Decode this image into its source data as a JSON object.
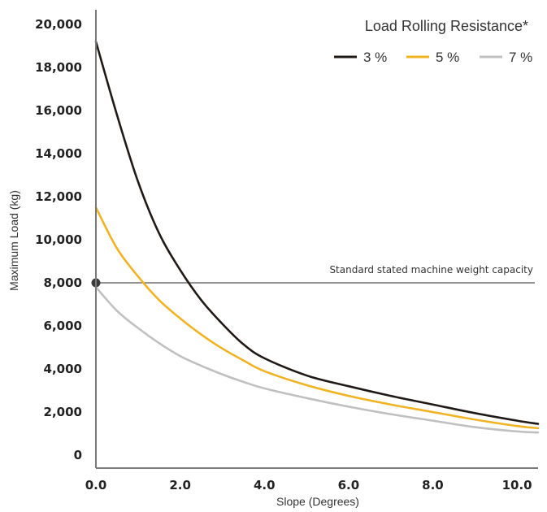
{
  "chart_data": {
    "type": "line",
    "xlabel": "Slope (Degrees)",
    "ylabel": "Maximum Load (kg)",
    "xlim": [
      0,
      10.5
    ],
    "ylim": [
      0,
      20000
    ],
    "xticks": [
      0,
      2,
      4,
      6,
      8,
      10
    ],
    "xtick_labels": [
      "0.0",
      "2.0",
      "4.0",
      "6.0",
      "8.0",
      "10.0"
    ],
    "yticks": [
      0,
      2000,
      4000,
      6000,
      8000,
      10000,
      12000,
      14000,
      16000,
      18000,
      20000
    ],
    "ytick_labels": [
      "0",
      "2,000",
      "4,000",
      "6,000",
      "8,000",
      "10,000",
      "12,000",
      "14,000",
      "16,000",
      "18,000",
      "20,000"
    ],
    "grid": false,
    "legend": {
      "title": "Load Rolling Resistance*",
      "placement": "top-right"
    },
    "series": [
      {
        "name": "3 %",
        "color": "#1f1a17",
        "x": [
          0,
          0.5,
          1,
          1.5,
          2,
          2.5,
          3,
          3.5,
          4,
          5,
          6,
          7,
          8,
          9,
          10,
          10.5
        ],
        "y": [
          19200,
          15800,
          12700,
          10300,
          8600,
          7200,
          6100,
          5150,
          4500,
          3700,
          3200,
          2750,
          2350,
          1950,
          1600,
          1450
        ]
      },
      {
        "name": "5 %",
        "color": "#f0b323",
        "x": [
          0,
          0.5,
          1,
          1.5,
          2,
          2.5,
          3,
          3.5,
          4,
          5,
          6,
          7,
          8,
          9,
          10,
          10.5
        ],
        "y": [
          11500,
          9600,
          8300,
          7200,
          6350,
          5600,
          4950,
          4400,
          3900,
          3250,
          2750,
          2350,
          2000,
          1650,
          1350,
          1250
        ]
      },
      {
        "name": "7 %",
        "color": "#c0c0c0",
        "x": [
          0,
          0.5,
          1,
          1.5,
          2,
          2.5,
          3,
          3.5,
          4,
          5,
          6,
          7,
          8,
          9,
          10,
          10.5
        ],
        "y": [
          7800,
          6700,
          5900,
          5200,
          4600,
          4150,
          3750,
          3400,
          3100,
          2650,
          2250,
          1900,
          1600,
          1300,
          1100,
          1050
        ]
      }
    ],
    "reference_line": {
      "y": 8000,
      "label": "Standard stated machine weight capacity",
      "marker_x": 0,
      "marker_y": 8000
    }
  }
}
